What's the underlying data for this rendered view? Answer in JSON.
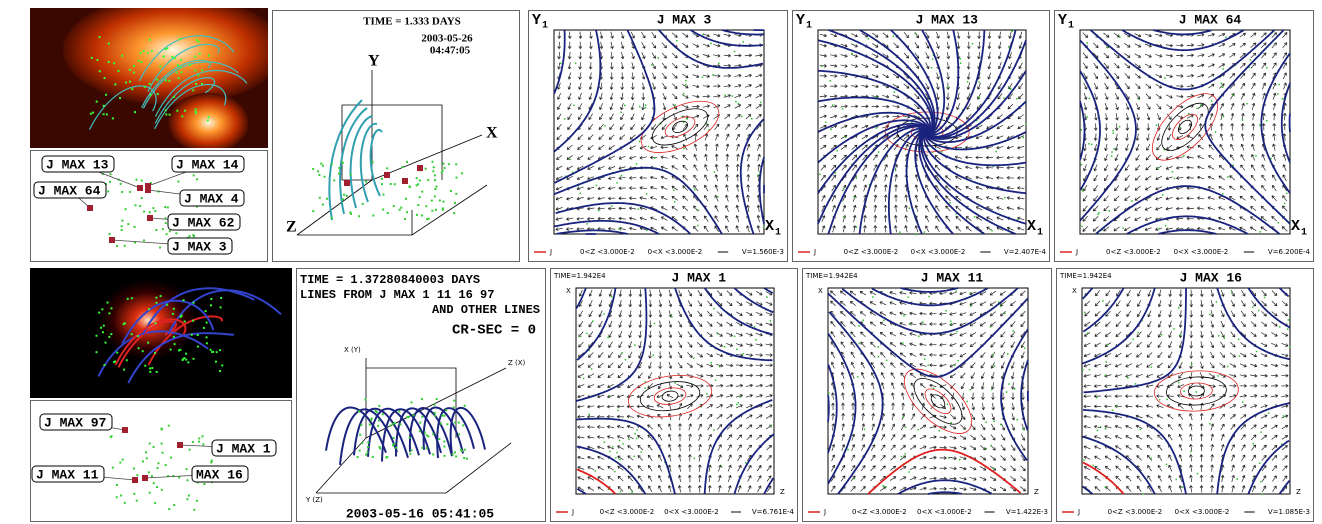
{
  "top_row": {
    "context_labels": [
      "J MAX 13",
      "J MAX 14",
      "J MAX 64",
      "J MAX 4",
      "J MAX 62",
      "J MAX 3"
    ],
    "overview": {
      "time": "TIME = 1.333 DAYS",
      "date": "2003-05-26",
      "clock": "04:47:05",
      "axes": [
        "Y",
        "X",
        "Z"
      ]
    },
    "panels": [
      {
        "title": "J MAX 3",
        "y_label": "Y",
        "y_sub": "1",
        "x_label": "X",
        "x_sub": "1",
        "legend": [
          "J",
          "0<Z <3.000E-2",
          "0<X <3.000E-2",
          "V=1.560E-3"
        ]
      },
      {
        "title": "J MAX 13",
        "y_label": "Y",
        "y_sub": "1",
        "x_label": "X",
        "x_sub": "1",
        "legend": [
          "J",
          "0<Z <3.000E-2",
          "0<X <3.000E-2",
          "V=2.407E-4"
        ]
      },
      {
        "title": "J MAX 64",
        "y_label": "Y",
        "y_sub": "1",
        "x_label": "X",
        "x_sub": "1",
        "legend": [
          "J",
          "0<Z <3.000E-2",
          "0<X <3.000E-2",
          "V=6.200E-4"
        ]
      }
    ]
  },
  "bottom_row": {
    "context_labels": [
      "J MAX 97",
      "J MAX 1",
      "J MAX 11",
      "MAX 16"
    ],
    "overview": {
      "lines": [
        "TIME = 1.37280840003 DAYS",
        "LINES FROM J MAX 1 11 16 97",
        "AND OTHER LINES"
      ],
      "cr_sec": "CR-SEC = 0",
      "axes": [
        "X (Y)",
        "Z (X)",
        "Y (Z)"
      ],
      "timestamp": "2003-05-16 05:41:05"
    },
    "panels": [
      {
        "time": "TIME=1.942E4",
        "title": "J MAX 1",
        "y_label": "X",
        "x_label": "Z",
        "legend": [
          "J",
          "0<Z <3.000E-2",
          "0<X <3.000E-2",
          "V=6.761E-4"
        ]
      },
      {
        "time": "TIME=1.942E4",
        "title": "J MAX 11",
        "y_label": "X",
        "x_label": "Z",
        "legend": [
          "J",
          "0<Z <3.000E-2",
          "0<X <3.000E-2",
          "V=1.422E-3"
        ]
      },
      {
        "time": "TIME=1.942E4",
        "title": "J MAX 16",
        "y_label": "X",
        "x_label": "Z",
        "legend": [
          "J",
          "0<Z <3.000E-2",
          "0<X <3.000E-2",
          "V=1.085E-3"
        ]
      }
    ]
  }
}
